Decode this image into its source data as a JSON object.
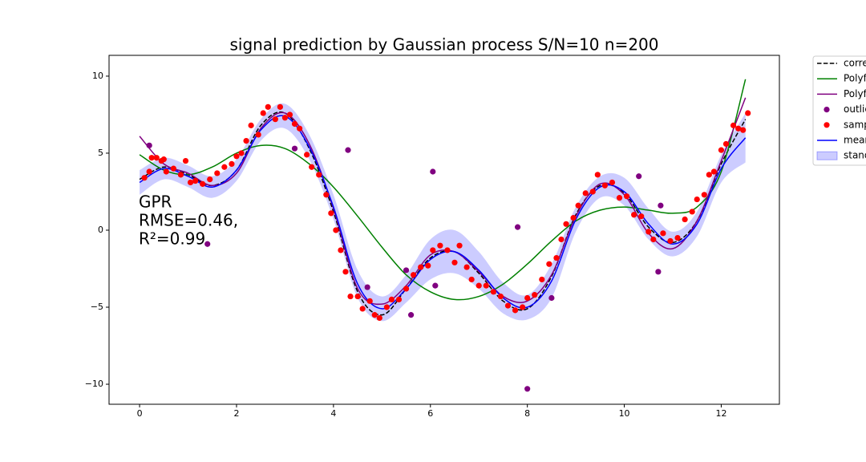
{
  "chart_data": {
    "type": "line",
    "title": "signal prediction by Gaussian process S/N=10 n=200",
    "annotation": [
      "GPR",
      "RMSE=0.46,",
      "R²=0.99"
    ],
    "xlim": [
      -0.63,
      13.2
    ],
    "ylim": [
      -11.3,
      11.35
    ],
    "xticks": [
      0,
      2,
      4,
      6,
      8,
      10,
      12
    ],
    "yticks": [
      {
        "value": -10,
        "label": "−10"
      },
      {
        "value": -5,
        "label": "−5"
      },
      0,
      5,
      10
    ],
    "x": [
      0,
      0.5,
      1,
      1.5,
      2,
      2.5,
      3,
      3.5,
      4,
      4.5,
      5,
      5.5,
      6,
      6.5,
      7,
      7.5,
      8,
      8.5,
      9,
      9.5,
      10,
      10.5,
      11,
      11.5,
      12,
      12.5
    ],
    "series": [
      {
        "name": "corre",
        "kind": "line",
        "style": "dashed",
        "color": "#000000",
        "values": [
          3.3,
          4.1,
          3.6,
          2.9,
          3.9,
          6.8,
          7.6,
          5.3,
          1.2,
          -4.0,
          -5.5,
          -3.8,
          -1.8,
          -1.4,
          -2.8,
          -4.6,
          -5.1,
          -3.0,
          1.0,
          2.9,
          2.4,
          0.2,
          -0.8,
          0.6,
          4.3,
          7.2
        ]
      },
      {
        "name": "Polyf",
        "kind": "line",
        "style": "solid",
        "color": "#008000",
        "values": [
          4.9,
          3.9,
          3.6,
          4.1,
          5.0,
          5.5,
          5.3,
          4.3,
          2.8,
          0.9,
          -1.1,
          -2.9,
          -4.0,
          -4.5,
          -4.3,
          -3.5,
          -2.2,
          -0.7,
          0.6,
          1.3,
          1.5,
          1.3,
          1.1,
          1.5,
          3.8,
          9.8
        ]
      },
      {
        "name": "Polyf",
        "kind": "line",
        "style": "solid",
        "color": "#800080",
        "values": [
          6.1,
          4.3,
          3.7,
          2.9,
          3.7,
          6.6,
          7.6,
          5.6,
          1.4,
          -3.8,
          -4.8,
          -3.6,
          -1.6,
          -1.4,
          -2.7,
          -4.3,
          -4.6,
          -2.9,
          0.9,
          3.0,
          2.3,
          -0.2,
          -1.2,
          0.6,
          4.5,
          8.6
        ]
      },
      {
        "name": "outlie",
        "kind": "scatter",
        "color": "#800080",
        "x": [
          0.2,
          1.4,
          3.2,
          4.3,
          4.7,
          5.5,
          5.6,
          6.05,
          6.1,
          7.8,
          8.0,
          8.5,
          10.3,
          10.75,
          10.7
        ],
        "values": [
          5.5,
          -0.9,
          5.3,
          5.2,
          -3.7,
          -2.6,
          -5.5,
          3.8,
          -3.6,
          0.2,
          -10.3,
          -4.4,
          3.5,
          1.6,
          -2.7
        ]
      },
      {
        "name": "samp",
        "kind": "scatter",
        "color": "#ff0000",
        "x": [
          0.1,
          0.2,
          0.25,
          0.35,
          0.45,
          0.5,
          0.55,
          0.7,
          0.85,
          0.95,
          1.05,
          1.15,
          1.3,
          1.45,
          1.6,
          1.75,
          1.9,
          2.0,
          2.1,
          2.2,
          2.3,
          2.45,
          2.55,
          2.65,
          2.8,
          2.9,
          3.0,
          3.1,
          3.2,
          3.3,
          3.45,
          3.55,
          3.7,
          3.85,
          3.95,
          4.05,
          4.15,
          4.25,
          4.35,
          4.5,
          4.6,
          4.75,
          4.85,
          4.95,
          5.1,
          5.2,
          5.35,
          5.5,
          5.65,
          5.8,
          5.95,
          6.05,
          6.2,
          6.35,
          6.5,
          6.6,
          6.75,
          6.85,
          7.0,
          7.15,
          7.3,
          7.45,
          7.6,
          7.75,
          7.9,
          8.0,
          8.15,
          8.3,
          8.45,
          8.6,
          8.7,
          8.8,
          8.95,
          9.05,
          9.2,
          9.35,
          9.45,
          9.6,
          9.75,
          9.9,
          10.05,
          10.2,
          10.35,
          10.5,
          10.6,
          10.8,
          10.95,
          11.1,
          11.25,
          11.4,
          11.5,
          11.65,
          11.75,
          11.85,
          12.0,
          12.1,
          12.25,
          12.35,
          12.45,
          12.55
        ],
        "values": [
          3.4,
          3.8,
          4.7,
          4.7,
          4.5,
          4.6,
          3.8,
          4.0,
          3.6,
          4.5,
          3.1,
          3.2,
          3.0,
          3.3,
          3.7,
          4.1,
          4.3,
          4.8,
          5.0,
          5.8,
          6.8,
          6.2,
          7.6,
          8.0,
          7.2,
          8.0,
          7.3,
          7.5,
          6.9,
          6.6,
          4.9,
          4.1,
          3.6,
          2.3,
          1.1,
          0.0,
          -1.3,
          -2.7,
          -4.3,
          -4.3,
          -5.1,
          -4.6,
          -5.5,
          -5.7,
          -5.0,
          -4.5,
          -4.5,
          -3.8,
          -2.9,
          -2.4,
          -2.3,
          -1.3,
          -1.0,
          -1.3,
          -2.1,
          -1.0,
          -2.4,
          -3.2,
          -3.6,
          -3.6,
          -4.0,
          -4.3,
          -4.9,
          -5.2,
          -5.0,
          -4.4,
          -4.2,
          -3.2,
          -2.2,
          -1.8,
          -0.6,
          0.4,
          0.8,
          1.6,
          2.4,
          2.5,
          3.6,
          2.9,
          3.1,
          2.1,
          2.2,
          1.0,
          0.9,
          -0.1,
          -0.6,
          -0.2,
          -0.7,
          -0.5,
          0.7,
          1.2,
          2.0,
          2.3,
          3.6,
          3.8,
          5.2,
          5.6,
          6.8,
          6.6,
          6.5,
          7.6
        ]
      },
      {
        "name": "mean",
        "kind": "line",
        "style": "solid",
        "color": "#0000ff",
        "values": [
          3.1,
          4.0,
          3.5,
          2.8,
          3.9,
          6.5,
          7.4,
          5.4,
          1.5,
          -3.5,
          -5.1,
          -3.8,
          -1.9,
          -1.4,
          -2.6,
          -4.4,
          -5.0,
          -3.3,
          0.7,
          2.8,
          2.5,
          0.4,
          -0.9,
          0.4,
          4.0,
          6.0
        ]
      },
      {
        "name": "stand",
        "kind": "band",
        "color": "#0000ff",
        "upper": [
          3.9,
          4.7,
          4.2,
          3.5,
          4.6,
          7.2,
          8.2,
          6.2,
          2.3,
          -2.6,
          -4.3,
          -2.9,
          -0.6,
          0.0,
          -1.4,
          -3.4,
          -4.2,
          -2.2,
          1.5,
          3.5,
          3.4,
          1.4,
          -0.1,
          1.2,
          4.9,
          7.6
        ],
        "lower": [
          2.3,
          3.3,
          2.8,
          2.1,
          3.2,
          5.8,
          6.6,
          4.6,
          0.7,
          -4.4,
          -5.9,
          -4.7,
          -3.2,
          -2.8,
          -3.8,
          -5.4,
          -5.8,
          -4.4,
          -0.1,
          2.1,
          1.6,
          -0.6,
          -1.7,
          -0.4,
          3.1,
          4.4
        ]
      }
    ]
  }
}
